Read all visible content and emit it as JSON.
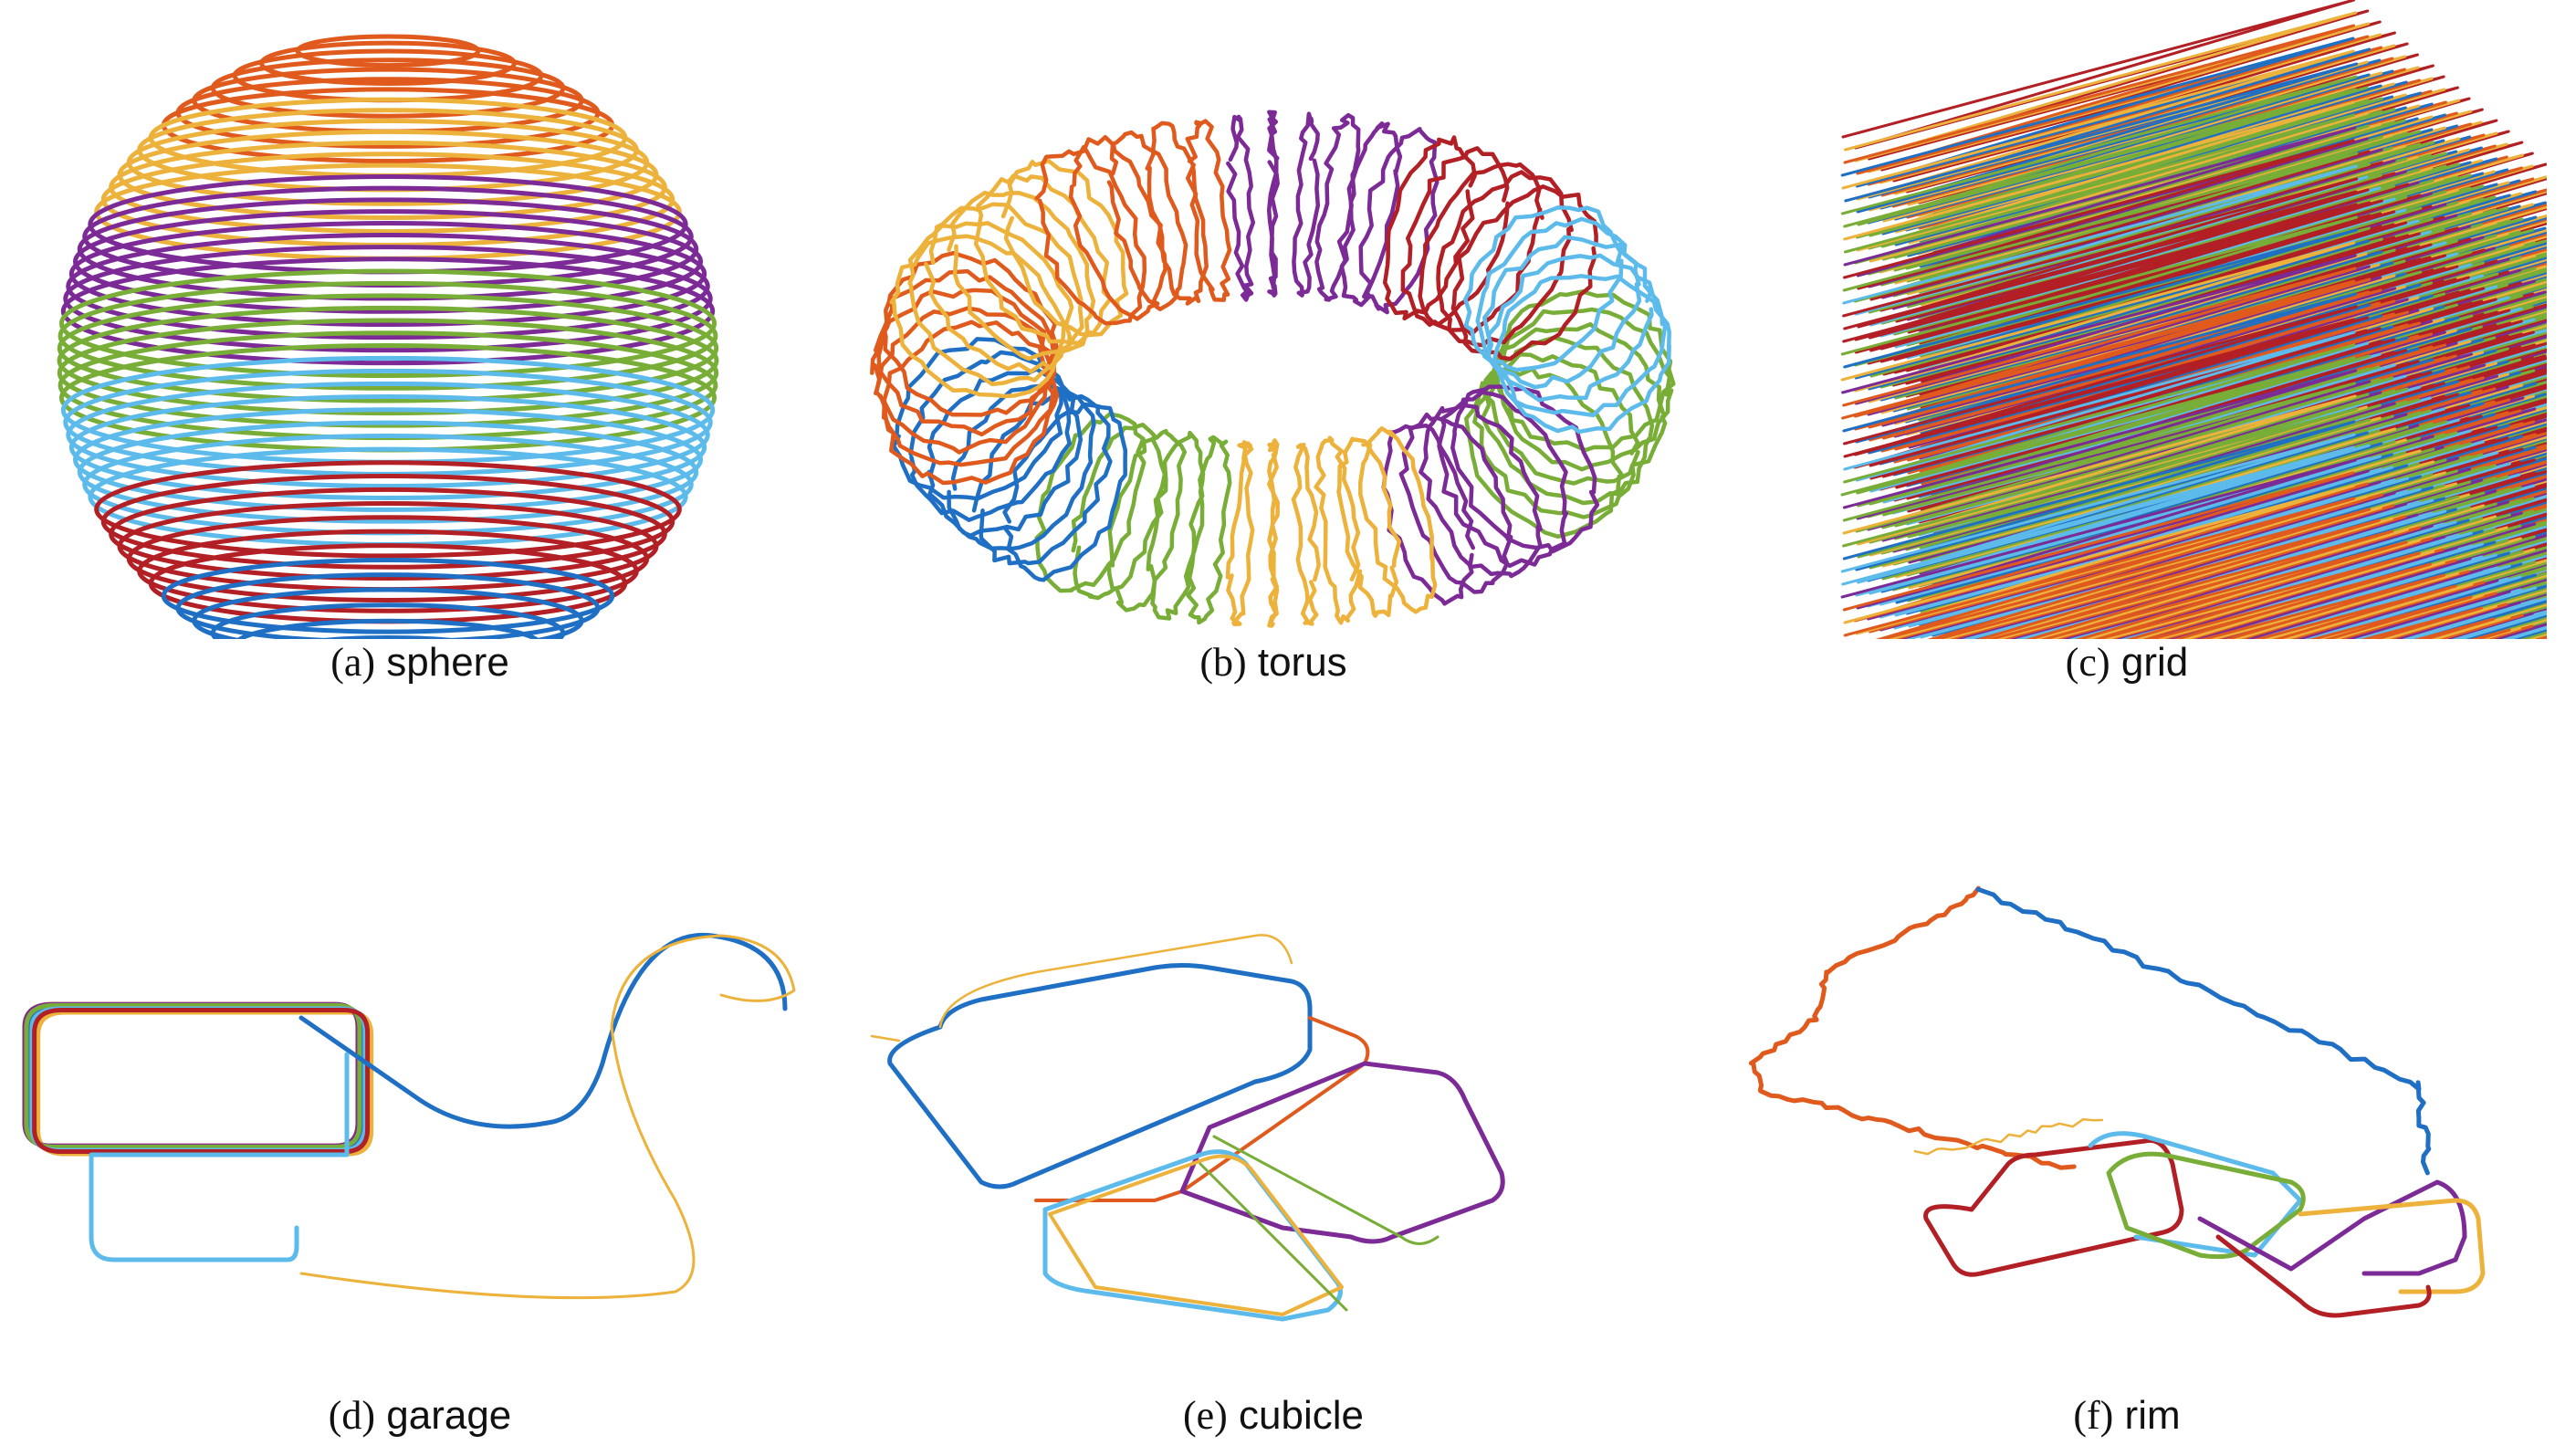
{
  "palette": [
    "#1f6fc5",
    "#e05a1d",
    "#ecb23b",
    "#7b2a96",
    "#78ad37",
    "#5dbbeb",
    "#b21f24"
  ],
  "panels": [
    {
      "letter": "(a)",
      "name": "sphere"
    },
    {
      "letter": "(b)",
      "name": "torus"
    },
    {
      "letter": "(c)",
      "name": "grid"
    },
    {
      "letter": "(d)",
      "name": "garage"
    },
    {
      "letter": "(e)",
      "name": "cubicle"
    },
    {
      "letter": "(f)",
      "name": "rim"
    }
  ]
}
